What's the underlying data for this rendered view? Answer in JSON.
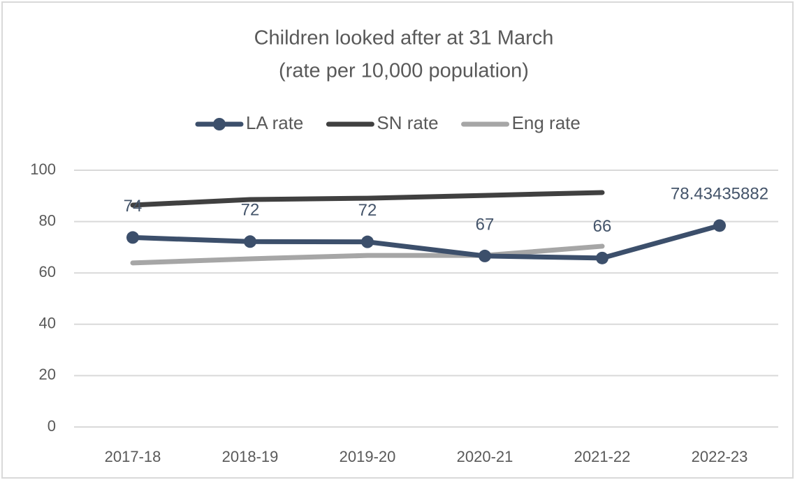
{
  "chart_data": {
    "type": "line",
    "title": [
      "Children looked after at 31 March",
      "(rate per 10,000 population)"
    ],
    "categories": [
      "2017-18",
      "2018-19",
      "2019-20",
      "2020-21",
      "2021-22",
      "2022-23"
    ],
    "series": [
      {
        "name": "LA rate",
        "color": "#3c4f6b",
        "marker": true,
        "values": [
          73.8,
          72.2,
          72.1,
          66.6,
          65.8,
          78.43435882
        ],
        "value_labels": [
          "74",
          "72",
          "72",
          "67",
          "66",
          "78.43435882"
        ]
      },
      {
        "name": "SN rate",
        "color": "#404040",
        "marker": false,
        "values": [
          86.4,
          88.6,
          89.1,
          90.2,
          91.3,
          null
        ]
      },
      {
        "name": "Eng rate",
        "color": "#a6a6a6",
        "marker": false,
        "values": [
          63.9,
          65.5,
          66.8,
          66.8,
          70.4,
          null
        ]
      }
    ],
    "ylim": [
      0,
      100
    ],
    "yticks": [
      0,
      20,
      40,
      60,
      80,
      100
    ],
    "grid": true,
    "legend": "top"
  }
}
